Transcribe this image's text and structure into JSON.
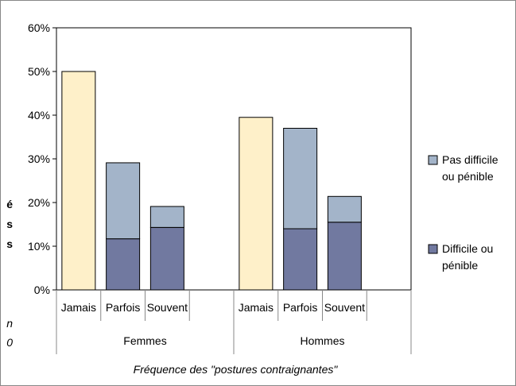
{
  "chart_data": {
    "type": "bar",
    "stacked": true,
    "title": "",
    "xlabel": "Fréquence des \"postures contraignantes\"",
    "ylabel": "",
    "ylim": [
      0,
      0.6
    ],
    "yticks": [
      "0%",
      "10%",
      "20%",
      "30%",
      "40%",
      "50%",
      "60%"
    ],
    "grid": false,
    "legend_position": "right",
    "groups": [
      "Femmes",
      "Hommes"
    ],
    "categories": [
      "Jamais",
      "Parfois",
      "Souvent",
      "Jamais",
      "Parfois",
      "Souvent"
    ],
    "series": [
      {
        "name": "Difficile ou pénible",
        "color": "#7179a0",
        "values": [
          0.5,
          0.117,
          0.143,
          0.395,
          0.14,
          0.155
        ]
      },
      {
        "name": "Pas difficile ou pénible",
        "color": "#a3b4c9",
        "values": [
          0,
          0.174,
          0.048,
          0,
          0.23,
          0.059
        ]
      }
    ],
    "jamais_color": "#fef0c9",
    "legend": [
      {
        "series": 1,
        "lines": [
          "Pas difficile",
          "ou pénible"
        ]
      },
      {
        "series": 0,
        "lines": [
          "Difficile ou",
          "pénible"
        ]
      }
    ]
  },
  "clipped_text": {
    "left_bold": [
      "é",
      "s",
      "s"
    ],
    "left_italic": [
      "n",
      "0"
    ]
  }
}
